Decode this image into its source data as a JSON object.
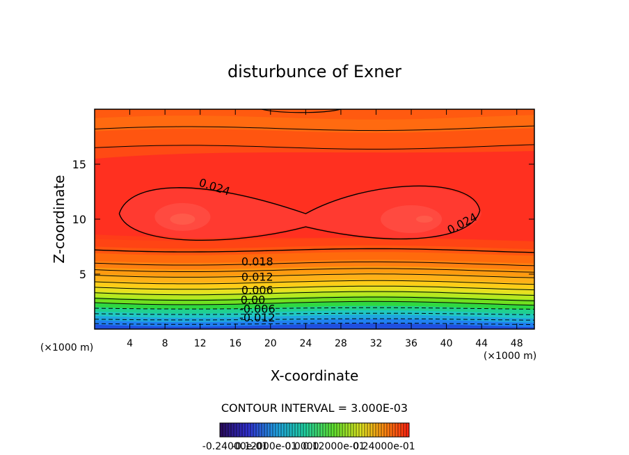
{
  "chart_data": {
    "type": "heatmap",
    "title": "disturbunce of Exner",
    "xlabel": "X-coordinate",
    "ylabel": "Z-coordinate",
    "x_unit": "(×1000 m)",
    "y_unit": "(×1000 m)",
    "xlim": [
      0,
      50
    ],
    "ylim": [
      0,
      20
    ],
    "x_ticks": [
      4,
      8,
      12,
      16,
      20,
      24,
      28,
      32,
      36,
      40,
      44,
      48
    ],
    "y_ticks": [
      5,
      10,
      15
    ],
    "contour_interval_text": "CONTOUR INTERVAL = 3.000E-03",
    "contour_labels": [
      {
        "text": "0.024",
        "x": 13.5,
        "z": 12.6
      },
      {
        "text": "0.024",
        "x": 42.0,
        "z": 9.3
      },
      {
        "text": "0.018",
        "x": 18.5,
        "z": 5.8
      },
      {
        "text": "0.012",
        "x": 18.5,
        "z": 4.4
      },
      {
        "text": "0.006",
        "x": 18.5,
        "z": 3.2
      },
      {
        "text": "0.00",
        "x": 18.0,
        "z": 2.3
      },
      {
        "text": "-0.006",
        "x": 18.5,
        "z": 1.5
      },
      {
        "text": "-0.012",
        "x": 18.5,
        "z": 0.7
      }
    ],
    "colorbar": {
      "min_label": "-0.24000e-01",
      "mid_label_1": "-0.12000e-01",
      "mid_label_2": "0.0000",
      "mid_label_3": "0.12000e-01",
      "max_label": "0.24000e-01",
      "range": [
        -0.024,
        0.03
      ]
    }
  }
}
